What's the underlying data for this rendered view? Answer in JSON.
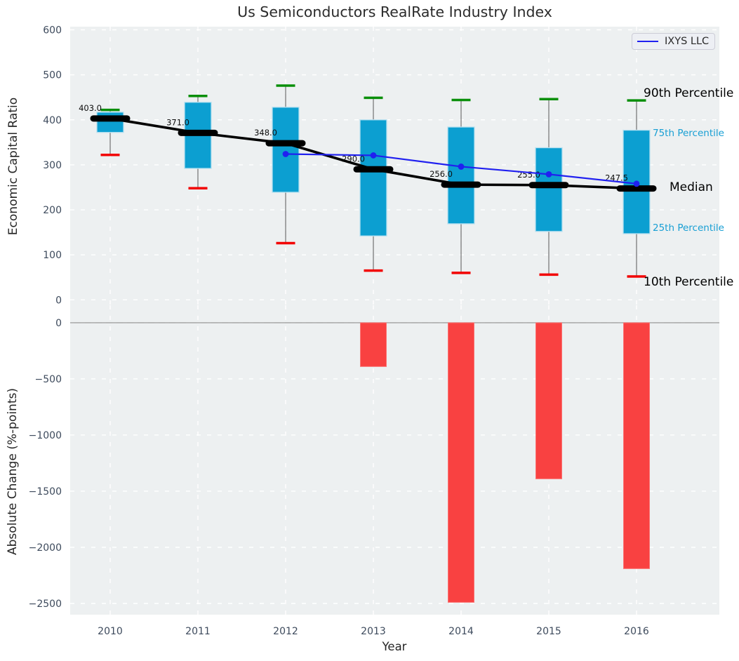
{
  "title": "Us Semiconductors RealRate Industry Index",
  "legend": {
    "label": "IXYS LLC"
  },
  "axes": {
    "xlabel": "Year",
    "xticks": [
      "2010",
      "2011",
      "2012",
      "2013",
      "2014",
      "2015",
      "2016"
    ],
    "top": {
      "ylabel": "Economic Capital Ratio",
      "yticks": [
        600,
        500,
        400,
        300,
        200,
        100,
        0
      ],
      "ytick_labels": [
        "600",
        "500",
        "400",
        "300",
        "200",
        "100",
        "0"
      ]
    },
    "bottom": {
      "ylabel": "Absolute Change (%-points)",
      "yticks": [
        0,
        -500,
        -1000,
        -1500,
        -2000,
        -2500
      ],
      "ytick_labels": [
        "0",
        "−500",
        "−1000",
        "−1500",
        "−2000",
        "−2500"
      ]
    }
  },
  "annotations": {
    "p90": "90th Percentile",
    "p75": "75th Percentile",
    "median": "Median",
    "p25": "25th Percentile",
    "p10": "10th Percentile"
  },
  "chart_data": [
    {
      "type": "box",
      "title": "Us Semiconductors RealRate Industry Index",
      "xlabel": "Year",
      "ylabel": "Economic Capital Ratio",
      "ylim": [
        0,
        600
      ],
      "grid": true,
      "legend_position": "upper right",
      "categories": [
        2010,
        2011,
        2012,
        2013,
        2014,
        2015,
        2016
      ],
      "series": [
        {
          "name": "90th Percentile",
          "values": [
            422,
            453,
            476,
            449,
            444,
            446,
            443
          ]
        },
        {
          "name": "75th Percentile",
          "values": [
            417,
            439,
            428,
            400,
            384,
            338,
            377
          ]
        },
        {
          "name": "Median",
          "values": [
            403,
            371,
            348,
            290,
            256,
            255,
            247.5
          ]
        },
        {
          "name": "25th Percentile",
          "values": [
            372,
            292,
            239,
            142,
            169,
            152,
            147
          ]
        },
        {
          "name": "10th Percentile",
          "values": [
            322,
            248,
            126,
            65,
            60,
            56,
            52
          ]
        },
        {
          "name": "IXYS LLC",
          "x": [
            2012,
            2013,
            2014,
            2015,
            2016
          ],
          "values": [
            324,
            321,
            296,
            279,
            258
          ]
        }
      ],
      "median_labels": [
        "403.0",
        "371.0",
        "348.0",
        "290.0",
        "256.0",
        "255.0",
        "247.5"
      ]
    },
    {
      "type": "bar",
      "xlabel": "Year",
      "ylabel": "Absolute Change (%-points)",
      "ylim": [
        -2600,
        150
      ],
      "grid": true,
      "categories": [
        2010,
        2011,
        2012,
        2013,
        2014,
        2015,
        2016
      ],
      "values": [
        null,
        null,
        null,
        -390,
        -2490,
        -1390,
        -2190
      ]
    }
  ],
  "colors": {
    "axes_bg": "#edf0f1",
    "grid": "#ffffff",
    "box_fill": "#0c9fd1",
    "box_edge": "#b7e0f0",
    "whisker": "#7a7a7a",
    "cap_90": "#0a8f0a",
    "cap_10": "#f20000",
    "median": "#000000",
    "ixys_line": "#2020f0",
    "bar_fill": "#f94141",
    "bar_edge": "#fb7373",
    "zero_line": "#a0a0a0",
    "tick_text": "#3d4a5c",
    "label_text": "#262626"
  }
}
